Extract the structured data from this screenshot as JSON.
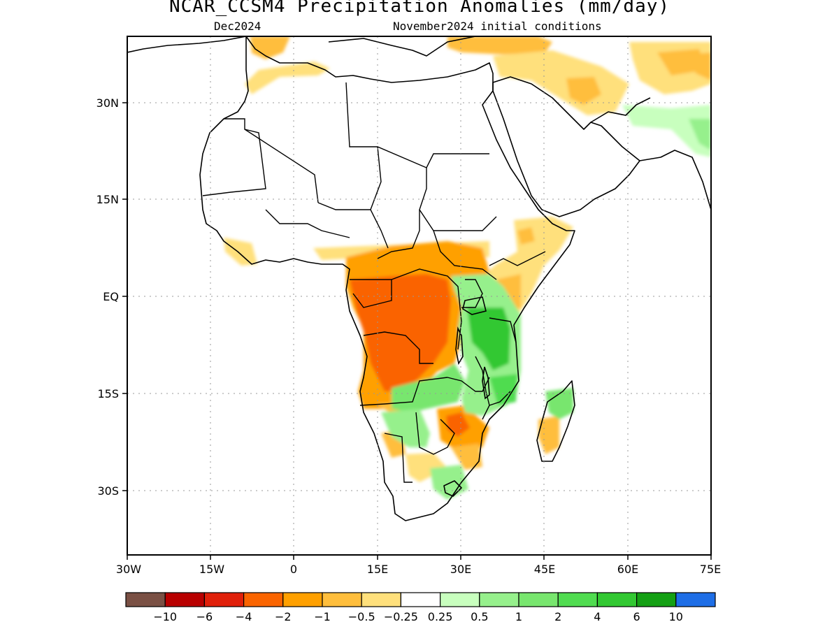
{
  "header": {
    "title": "NCAR_CCSM4 Precipitation Anomalies (mm/day)",
    "valid_month": "Dec2024",
    "init": "November2024 initial conditions"
  },
  "axes": {
    "lat_labels": [
      "30N",
      "15N",
      "EQ",
      "15S",
      "30S"
    ],
    "lon_labels": [
      "30W",
      "15W",
      "0",
      "15E",
      "30E",
      "45E",
      "60E",
      "75E"
    ]
  },
  "colorbar": {
    "colors": [
      "#7a5044",
      "#b80000",
      "#e0200a",
      "#fa6400",
      "#ffa000",
      "#ffbe3c",
      "#ffe07c",
      "#ffffff",
      "#c8ffbe",
      "#96f08c",
      "#78e66e",
      "#50dc50",
      "#32c832",
      "#14a014",
      "#1e6ee6"
    ],
    "labels": [
      "-10",
      "-6",
      "-4",
      "-2",
      "-1",
      "-0.5",
      "-0.25",
      "0.25",
      "0.5",
      "1",
      "2",
      "4",
      "6",
      "10"
    ]
  }
}
